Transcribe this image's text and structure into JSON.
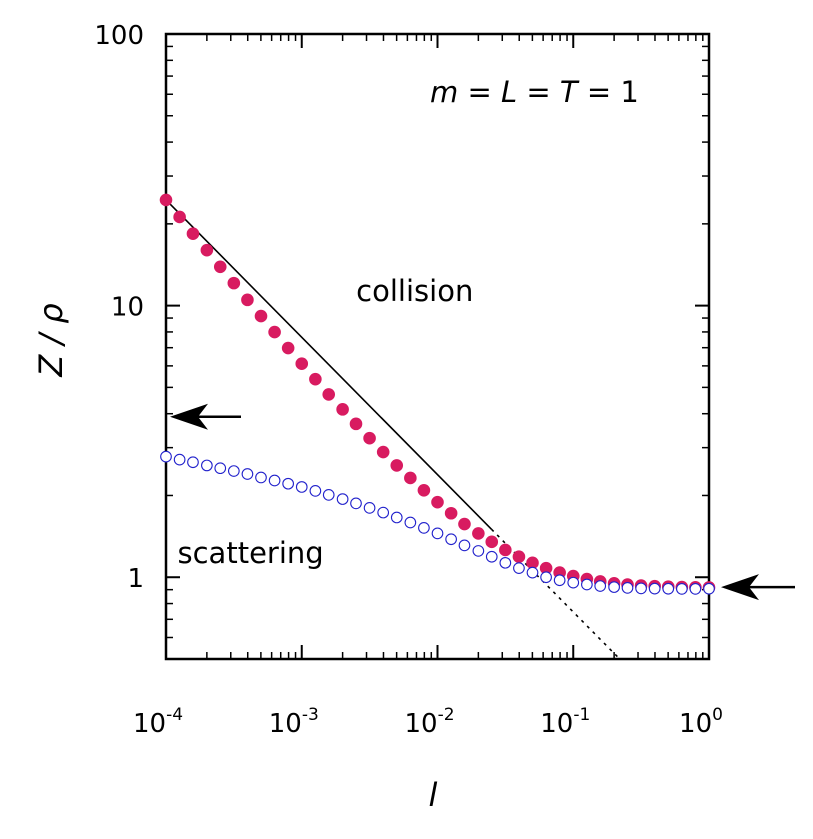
{
  "chart_data": {
    "type": "scatter",
    "xscale": "log",
    "yscale": "log",
    "xlim": [
      0.0001,
      1
    ],
    "ylim": [
      0.5,
      100
    ],
    "xlabel": "l",
    "ylabel": "Z / ρ",
    "params_text": {
      "m": "m",
      "L": "L",
      "T": "T",
      "eq": " = ",
      "val": "1"
    },
    "x_ticks": [
      {
        "value": 0.0001,
        "base": "10",
        "exp": "-4"
      },
      {
        "value": 0.001,
        "base": "10",
        "exp": "-3"
      },
      {
        "value": 0.01,
        "base": "10",
        "exp": "-2"
      },
      {
        "value": 0.1,
        "base": "10",
        "exp": "-1"
      },
      {
        "value": 1,
        "base": "10",
        "exp": "0"
      }
    ],
    "y_ticks": [
      {
        "value": 1,
        "label": "1"
      },
      {
        "value": 10,
        "label": "10"
      },
      {
        "value": 100,
        "label": "100"
      }
    ],
    "annotations": [
      {
        "text": "collision",
        "x": 0.0068,
        "y": 10.4
      },
      {
        "text": "scattering",
        "x": 0.00042,
        "y": 1.13
      }
    ],
    "arrows": [
      {
        "name": "left-arrow",
        "y": 3.9,
        "side": "left"
      },
      {
        "name": "right-arrow",
        "y": 0.92,
        "side": "right"
      }
    ],
    "x_points": [
      0.0001,
      0.000126,
      0.000158,
      0.0002,
      0.000251,
      0.000316,
      0.000398,
      0.000501,
      0.000631,
      0.000794,
      0.001,
      0.00126,
      0.00158,
      0.002,
      0.00251,
      0.00316,
      0.00398,
      0.00501,
      0.00631,
      0.00794,
      0.01,
      0.0126,
      0.0158,
      0.02,
      0.0251,
      0.0316,
      0.0398,
      0.0501,
      0.0631,
      0.0794,
      0.1,
      0.126,
      0.158,
      0.2,
      0.251,
      0.316,
      0.398,
      0.501,
      0.631,
      0.794,
      1
    ],
    "series": [
      {
        "name": "collision",
        "marker": "filled",
        "color": "#d81b60",
        "values": [
          24.5,
          21.2,
          18.4,
          16.0,
          13.9,
          12.1,
          10.5,
          9.15,
          7.99,
          6.98,
          6.11,
          5.36,
          4.71,
          4.15,
          3.67,
          3.25,
          2.89,
          2.58,
          2.32,
          2.09,
          1.89,
          1.72,
          1.57,
          1.45,
          1.35,
          1.26,
          1.19,
          1.13,
          1.08,
          1.04,
          1.01,
          0.985,
          0.965,
          0.95,
          0.94,
          0.932,
          0.927,
          0.923,
          0.92,
          0.918,
          0.917
        ]
      },
      {
        "name": "scattering",
        "marker": "open",
        "color": "#2222cc",
        "values": [
          2.78,
          2.71,
          2.65,
          2.58,
          2.52,
          2.46,
          2.4,
          2.33,
          2.27,
          2.21,
          2.15,
          2.08,
          2.01,
          1.94,
          1.87,
          1.8,
          1.73,
          1.66,
          1.59,
          1.52,
          1.45,
          1.38,
          1.31,
          1.25,
          1.19,
          1.13,
          1.08,
          1.04,
          1.0,
          0.975,
          0.955,
          0.94,
          0.928,
          0.92,
          0.914,
          0.91,
          0.908,
          0.907,
          0.906,
          0.906,
          0.907
        ]
      }
    ],
    "fit_line": {
      "style": "solid-then-dotted",
      "x": [
        0.0001,
        0.22
      ],
      "y": [
        24.5,
        0.5
      ],
      "solid_until_x": 0.025
    }
  }
}
